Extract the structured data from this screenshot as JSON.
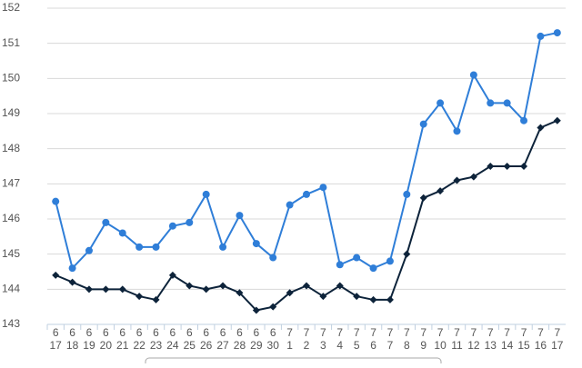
{
  "chart_data": {
    "type": "line",
    "categories": [
      [
        "6",
        "17"
      ],
      [
        "6",
        "18"
      ],
      [
        "6",
        "19"
      ],
      [
        "6",
        "20"
      ],
      [
        "6",
        "21"
      ],
      [
        "6",
        "22"
      ],
      [
        "6",
        "23"
      ],
      [
        "6",
        "24"
      ],
      [
        "6",
        "25"
      ],
      [
        "6",
        "26"
      ],
      [
        "6",
        "27"
      ],
      [
        "6",
        "28"
      ],
      [
        "6",
        "29"
      ],
      [
        "6",
        "30"
      ],
      [
        "7",
        "1"
      ],
      [
        "7",
        "2"
      ],
      [
        "7",
        "3"
      ],
      [
        "7",
        "4"
      ],
      [
        "7",
        "5"
      ],
      [
        "7",
        "6"
      ],
      [
        "7",
        "7"
      ],
      [
        "7",
        "8"
      ],
      [
        "7",
        "9"
      ],
      [
        "7",
        "10"
      ],
      [
        "7",
        "11"
      ],
      [
        "7",
        "12"
      ],
      [
        "7",
        "13"
      ],
      [
        "7",
        "14"
      ],
      [
        "7",
        "15"
      ],
      [
        "7",
        "16"
      ],
      [
        "7",
        "17"
      ]
    ],
    "series": [
      {
        "color": "#2f7ed8",
        "marker": "circle",
        "values": [
          146.5,
          144.6,
          145.1,
          145.9,
          145.6,
          145.2,
          145.2,
          145.8,
          145.9,
          146.7,
          145.2,
          146.1,
          145.3,
          144.9,
          146.4,
          146.7,
          146.9,
          144.7,
          144.9,
          144.6,
          144.8,
          146.7,
          148.7,
          149.3,
          148.5,
          150.1,
          149.3,
          149.3,
          148.8,
          151.2,
          151.3
        ]
      },
      {
        "color": "#0d233a",
        "marker": "diamond",
        "values": [
          144.4,
          144.2,
          144.0,
          144.0,
          144.0,
          143.8,
          143.7,
          144.4,
          144.1,
          144.0,
          144.1,
          143.9,
          143.4,
          143.5,
          143.9,
          144.1,
          143.8,
          144.1,
          143.8,
          143.7,
          143.7,
          145.0,
          146.6,
          146.8,
          147.1,
          147.2,
          147.5,
          147.5,
          147.5,
          148.6,
          148.8
        ]
      }
    ],
    "ylim": [
      143,
      152
    ],
    "yticks": [
      143,
      144,
      145,
      146,
      147,
      148,
      149,
      150,
      151,
      152
    ],
    "grid": true
  }
}
